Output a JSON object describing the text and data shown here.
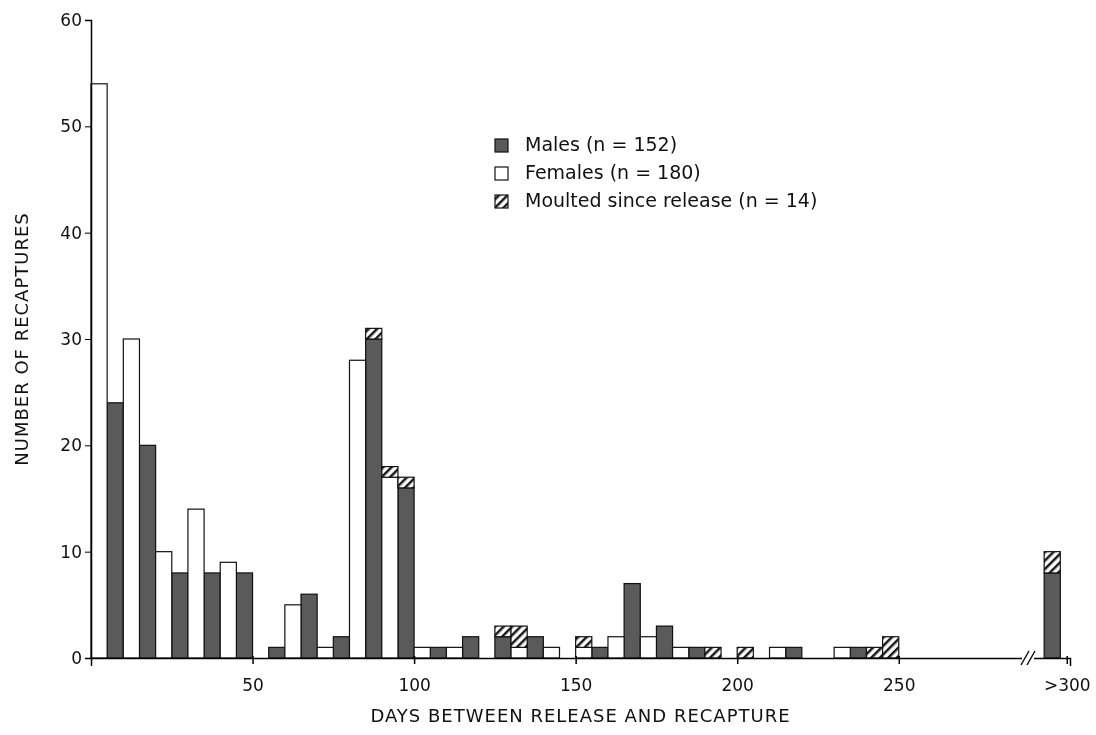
{
  "chart_data": {
    "type": "bar",
    "stacked": true,
    "xlabel": "DAYS BETWEEN RELEASE AND RECAPTURE",
    "ylabel": "NUMBER OF RECAPTURES",
    "x": [
      2.5,
      7.5,
      12.5,
      17.5,
      22.5,
      27.5,
      32.5,
      37.5,
      42.5,
      47.5,
      52.5,
      57.5,
      62.5,
      67.5,
      72.5,
      77.5,
      82.5,
      87.5,
      92.5,
      97.5,
      102.5,
      107.5,
      112.5,
      117.5,
      122.5,
      127.5,
      132.5,
      137.5,
      142.5,
      147.5,
      152.5,
      157.5,
      162.5,
      167.5,
      172.5,
      177.5,
      182.5,
      187.5,
      192.5,
      197.5,
      202.5,
      207.5,
      212.5,
      217.5,
      222.5,
      227.5,
      232.5,
      237.5,
      242.5,
      247.5,
      297.5
    ],
    "series": [
      {
        "name": "Males (n = 152)",
        "color": "#5a5a5a",
        "values": [
          null,
          24,
          null,
          20,
          null,
          8,
          null,
          8,
          null,
          8,
          null,
          1,
          null,
          6,
          null,
          2,
          null,
          30,
          null,
          16,
          null,
          1,
          null,
          2,
          null,
          2,
          null,
          2,
          null,
          null,
          null,
          1,
          null,
          7,
          null,
          3,
          null,
          1,
          null,
          null,
          null,
          null,
          null,
          1,
          null,
          null,
          null,
          1,
          null,
          null,
          8
        ]
      },
      {
        "name": "Females (n = 180)",
        "color": "#ffffff",
        "values": [
          54,
          null,
          30,
          null,
          10,
          null,
          14,
          null,
          9,
          null,
          null,
          null,
          5,
          null,
          1,
          null,
          28,
          null,
          17,
          null,
          1,
          null,
          1,
          null,
          null,
          null,
          1,
          null,
          1,
          null,
          1,
          null,
          2,
          null,
          2,
          null,
          1,
          null,
          null,
          null,
          null,
          null,
          1,
          null,
          null,
          null,
          1,
          null,
          null,
          null,
          null
        ]
      },
      {
        "name": "Moulted since release (n = 14)",
        "color": "#1a1a1a",
        "values": [
          null,
          null,
          null,
          null,
          null,
          null,
          null,
          null,
          null,
          null,
          null,
          null,
          null,
          null,
          null,
          null,
          null,
          1,
          1,
          1,
          null,
          null,
          null,
          null,
          null,
          1,
          2,
          null,
          null,
          null,
          1,
          null,
          null,
          null,
          null,
          null,
          null,
          null,
          1,
          null,
          1,
          null,
          null,
          null,
          null,
          null,
          null,
          null,
          1,
          2,
          2
        ]
      }
    ],
    "xlim": [
      0,
      303
    ],
    "xticks": [
      50,
      100,
      150,
      200,
      250,
      {
        "value": 302,
        "label": ">300"
      }
    ],
    "ylim": [
      0,
      60
    ],
    "yticks": [
      0,
      10,
      20,
      30,
      40,
      50,
      60
    ],
    "grid": false,
    "legend": "top right"
  }
}
